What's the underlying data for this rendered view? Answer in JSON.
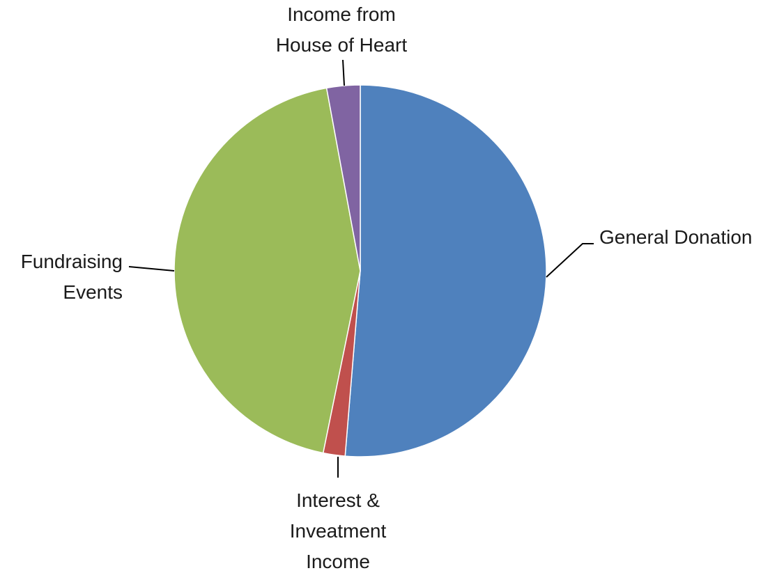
{
  "chart_data": {
    "type": "pie",
    "title": "",
    "start_angle_deg": 0,
    "direction": "clockwise",
    "slices": [
      {
        "label": [
          "General Donation"
        ],
        "value": 51.3,
        "color": "#4f81bd"
      },
      {
        "label": [
          "Interest &",
          "Inveatment",
          "Income"
        ],
        "value": 1.9,
        "color": "#c0504d"
      },
      {
        "label": [
          "Fundraising",
          "Events"
        ],
        "value": 43.9,
        "color": "#9bbb59"
      },
      {
        "label": [
          "Income from",
          "House of Heart"
        ],
        "value": 2.9,
        "color": "#8064a2"
      }
    ]
  }
}
